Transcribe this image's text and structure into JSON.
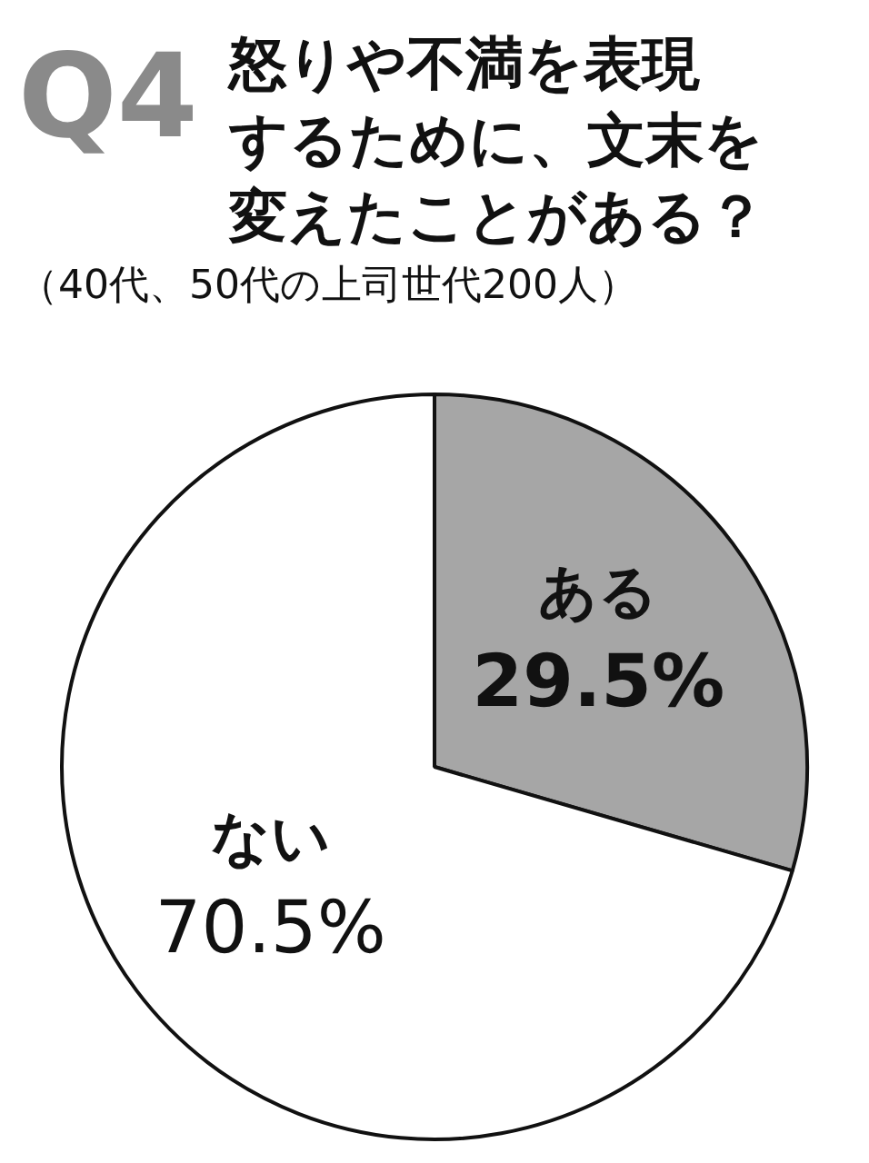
{
  "chart_data": {
    "type": "pie",
    "title": "怒りや不満を表現するために、文末を変えたことがある？",
    "subtitle": "（40代、50代の上司世代200人）",
    "annotations": [
      "Q4"
    ],
    "categories": [
      "ある",
      "ない"
    ],
    "values": [
      29.5,
      70.5
    ],
    "colors": [
      "#a6a6a6",
      "#ffffff"
    ],
    "value_labels": [
      "29.5%",
      "70.5%"
    ],
    "legend": false
  }
}
